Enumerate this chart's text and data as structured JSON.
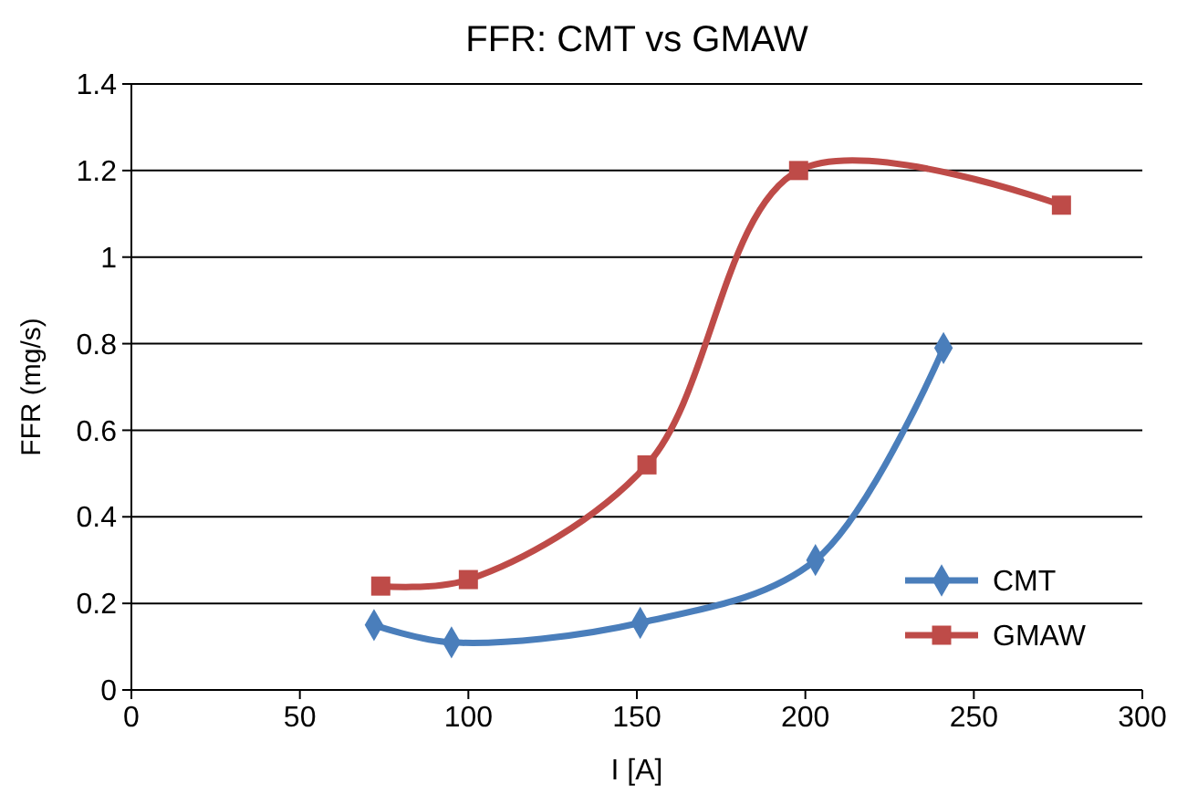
{
  "chart_data": {
    "type": "line",
    "title": "FFR: CMT vs GMAW",
    "xlabel": "I [A]",
    "ylabel": "FFR (mg/s)",
    "xlim": [
      0,
      300
    ],
    "xticks": [
      0,
      50,
      100,
      150,
      200,
      250,
      300
    ],
    "ylim": [
      0,
      1.4
    ],
    "yticks": [
      0,
      0.2,
      0.4,
      0.6,
      0.8,
      1,
      1.2,
      1.4
    ],
    "grid": "y",
    "legend": "bottom right",
    "series": [
      {
        "name": "CMT",
        "color": "#4a7ebb",
        "marker": "diamond",
        "x": [
          72,
          95,
          151,
          203,
          241
        ],
        "values": [
          0.15,
          0.11,
          0.155,
          0.3,
          0.79
        ]
      },
      {
        "name": "GMAW",
        "color": "#be4b48",
        "marker": "square",
        "x": [
          74,
          100,
          153,
          198,
          276
        ],
        "values": [
          0.24,
          0.255,
          0.52,
          1.2,
          1.12
        ]
      }
    ]
  }
}
